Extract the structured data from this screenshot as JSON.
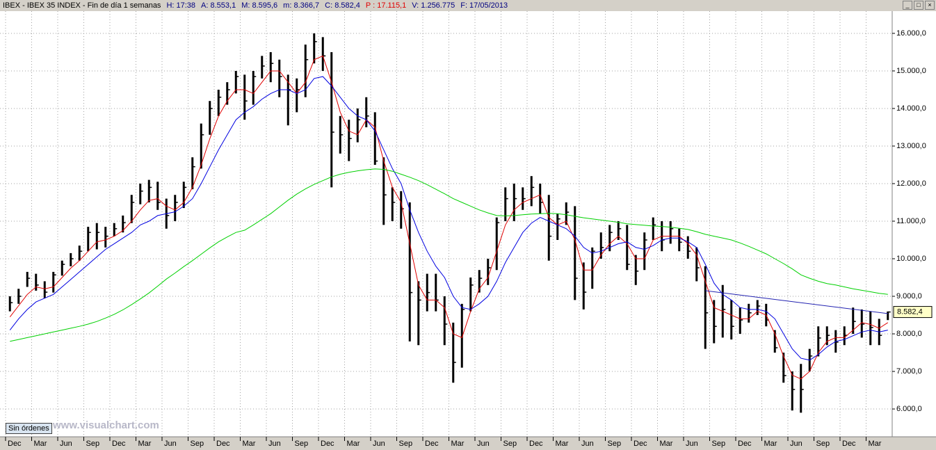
{
  "header": {
    "items": [
      {
        "text": "IBEX - IBEX 35 INDEX - Fin de día 1 semanas",
        "color": "#000000"
      },
      {
        "text": "H: 17:38",
        "color": "#000080"
      },
      {
        "text": "A: 8.553,1",
        "color": "#000080"
      },
      {
        "text": "M: 8.595,6",
        "color": "#000080"
      },
      {
        "text": "m: 8.366,7",
        "color": "#000080"
      },
      {
        "text": "C: 8.582,4",
        "color": "#000080"
      },
      {
        "text": "P : 17.115,1",
        "color": "#e00000"
      },
      {
        "text": "V: 1.256.775",
        "color": "#000080"
      },
      {
        "text": "F: 17/05/2013",
        "color": "#000080"
      }
    ]
  },
  "chart_data": {
    "type": "ohlc",
    "categories": [
      "Dec",
      null,
      null,
      "Mar",
      null,
      null,
      "Jun",
      null,
      null,
      "Sep",
      null,
      null,
      "Dec",
      null,
      null,
      "Mar",
      null,
      null,
      "Jun",
      null,
      null,
      "Sep",
      null,
      null,
      "Dec",
      null,
      null,
      "Mar",
      null,
      null,
      "Jun",
      null,
      null,
      "Sep",
      null,
      null,
      "Dec",
      null,
      null,
      "Mar",
      null,
      null,
      "Jun",
      null,
      null,
      "Sep",
      null,
      null,
      "Dec",
      null,
      null,
      "Mar",
      null,
      null,
      "Jun",
      null,
      null,
      "Sep",
      null,
      null,
      "Dec",
      null,
      null,
      "Mar",
      null,
      null,
      "Jun",
      null,
      null,
      "Sep",
      null,
      null,
      "Dec",
      null,
      null,
      "Mar",
      null,
      null,
      "Jun",
      null,
      null,
      "Sep",
      null,
      null,
      "Dec",
      null,
      null,
      "Mar",
      null,
      null,
      "Jun",
      null,
      null,
      "Sep",
      null,
      null,
      "Dec",
      null,
      null,
      "Mar",
      null,
      null
    ],
    "high": [
      9000,
      9200,
      9650,
      9600,
      9400,
      9650,
      9950,
      10150,
      10350,
      10850,
      10950,
      10850,
      10950,
      11150,
      11700,
      12000,
      12100,
      12050,
      11600,
      11700,
      12050,
      12700,
      13600,
      14200,
      14500,
      14700,
      15000,
      14900,
      15000,
      15400,
      15500,
      15300,
      14900,
      14800,
      15700,
      16000,
      15900,
      15500,
      13800,
      13700,
      14000,
      14300,
      13900,
      12700,
      11900,
      11800,
      11500,
      9400,
      9600,
      9600,
      9000,
      8300,
      8800,
      9500,
      9700,
      10000,
      11100,
      11900,
      12000,
      11900,
      12200,
      12000,
      11700,
      11200,
      11500,
      11400,
      9900,
      10300,
      10700,
      10900,
      11000,
      10900,
      10100,
      10700,
      11100,
      11000,
      11000,
      10800,
      10600,
      10300,
      9800,
      8900,
      9300,
      8900,
      8700,
      8800,
      8900,
      8800,
      8100,
      7500,
      7000,
      7200,
      7600,
      8200,
      8200,
      8100,
      8200,
      8700,
      8650,
      8600,
      8400,
      8595.6
    ],
    "low": [
      8600,
      8800,
      9250,
      9150,
      8950,
      9100,
      9550,
      9800,
      9950,
      10200,
      10250,
      10300,
      10600,
      10700,
      10950,
      11450,
      11500,
      11300,
      10800,
      11000,
      11350,
      11850,
      12400,
      13300,
      13800,
      14100,
      14400,
      13700,
      14100,
      14800,
      14700,
      14300,
      13550,
      13900,
      14300,
      15200,
      15000,
      11900,
      12800,
      12600,
      13100,
      13500,
      12500,
      10900,
      11000,
      10800,
      7800,
      7700,
      8600,
      8600,
      7700,
      6700,
      7100,
      8600,
      9100,
      9300,
      9700,
      11000,
      11000,
      11300,
      11400,
      11200,
      9950,
      10500,
      10900,
      8900,
      8650,
      9200,
      10000,
      10200,
      10500,
      9700,
      9300,
      9700,
      10500,
      10200,
      10400,
      10200,
      10000,
      9400,
      7600,
      7750,
      7900,
      7850,
      8000,
      8300,
      8500,
      8200,
      7500,
      6700,
      5960,
      5900,
      7000,
      7400,
      7700,
      7500,
      7700,
      8000,
      7900,
      7700,
      7700,
      8366.7
    ],
    "close": [
      8830,
      9000,
      9480,
      9300,
      9110,
      9570,
      9850,
      10000,
      10200,
      10700,
      10700,
      10600,
      10800,
      10960,
      11500,
      11800,
      11900,
      11500,
      11150,
      11500,
      11900,
      12450,
      13300,
      14000,
      14300,
      14500,
      14850,
      14200,
      14850,
      15130,
      15200,
      14850,
      14500,
      14500,
      15300,
      15780,
      15400,
      13370,
      13300,
      13200,
      13700,
      13800,
      12600,
      11700,
      11500,
      11330,
      9100,
      8900,
      9100,
      8900,
      8260,
      7240,
      8650,
      9300,
      9480,
      9760,
      10960,
      11600,
      11600,
      11600,
      11900,
      11500,
      10600,
      11060,
      11240,
      9480,
      9110,
      10200,
      10300,
      10700,
      10800,
      9850,
      9670,
      10500,
      10900,
      10500,
      10800,
      10440,
      10200,
      9760,
      8560,
      8200,
      8650,
      8200,
      8370,
      8560,
      8740,
      8370,
      7630,
      6890,
      6520,
      6520,
      7410,
      7890,
      7960,
      7780,
      7960,
      8330,
      8260,
      8170,
      7960,
      8582.4
    ],
    "bar_color": "#000000",
    "series": [
      {
        "color": "#e00000",
        "values": [
          8450,
          8750,
          9050,
          9250,
          9200,
          9250,
          9500,
          9750,
          9950,
          10200,
          10450,
          10500,
          10600,
          10750,
          11000,
          11300,
          11550,
          11600,
          11400,
          11300,
          11500,
          11900,
          12500,
          13200,
          13800,
          14200,
          14500,
          14500,
          14400,
          14700,
          15000,
          15000,
          14700,
          14400,
          14700,
          15300,
          15400,
          14700,
          13900,
          13400,
          13300,
          13700,
          13500,
          12600,
          11900,
          11500,
          10400,
          9300,
          8900,
          8900,
          8700,
          8000,
          7900,
          8600,
          9200,
          9500,
          10200,
          10900,
          11300,
          11500,
          11600,
          11700,
          11100,
          10900,
          11000,
          10500,
          9700,
          9700,
          10100,
          10400,
          10600,
          10400,
          10000,
          10000,
          10500,
          10600,
          10600,
          10600,
          10400,
          10100,
          9400,
          8700,
          8600,
          8500,
          8400,
          8400,
          8600,
          8500,
          8000,
          7400,
          6900,
          6800,
          7000,
          7500,
          7800,
          7900,
          7900,
          8100,
          8300,
          8250,
          8150,
          8300
        ]
      },
      {
        "color": "#0000e0",
        "values": [
          8100,
          8400,
          8650,
          8850,
          8950,
          9050,
          9250,
          9450,
          9650,
          9850,
          10050,
          10250,
          10400,
          10550,
          10700,
          10900,
          11000,
          11150,
          11200,
          11250,
          11400,
          11600,
          12000,
          12450,
          12900,
          13300,
          13700,
          13900,
          14050,
          14250,
          14400,
          14500,
          14500,
          14400,
          14500,
          14800,
          14850,
          14600,
          14300,
          14000,
          13800,
          13700,
          13400,
          12900,
          12400,
          12000,
          11300,
          10700,
          10200,
          9800,
          9500,
          9000,
          8700,
          8650,
          8800,
          9000,
          9400,
          9900,
          10300,
          10700,
          10950,
          11100,
          11000,
          10900,
          10800,
          10600,
          10300,
          10150,
          10200,
          10300,
          10400,
          10450,
          10300,
          10250,
          10350,
          10500,
          10550,
          10550,
          10450,
          10300,
          9850,
          9350,
          9050,
          8900,
          8700,
          8650,
          8650,
          8600,
          8400,
          8000,
          7600,
          7350,
          7300,
          7450,
          7650,
          7800,
          7850,
          7950,
          8050,
          8100,
          8050,
          8100
        ]
      },
      {
        "color": "#00d000",
        "values": [
          7800,
          7850,
          7900,
          7950,
          8000,
          8050,
          8100,
          8150,
          8200,
          8260,
          8330,
          8420,
          8520,
          8640,
          8780,
          8930,
          9090,
          9270,
          9460,
          9620,
          9790,
          9950,
          10120,
          10290,
          10450,
          10580,
          10700,
          10760,
          10900,
          11050,
          11200,
          11380,
          11560,
          11720,
          11860,
          11980,
          12080,
          12180,
          12250,
          12300,
          12340,
          12370,
          12390,
          12380,
          12330,
          12250,
          12170,
          12080,
          11970,
          11850,
          11730,
          11600,
          11500,
          11400,
          11300,
          11220,
          11150,
          11140,
          11150,
          11170,
          11190,
          11200,
          11210,
          11200,
          11170,
          11130,
          11090,
          11060,
          11030,
          11000,
          10970,
          10930,
          10910,
          10890,
          10870,
          10860,
          10840,
          10810,
          10780,
          10720,
          10650,
          10600,
          10550,
          10500,
          10420,
          10330,
          10230,
          10130,
          10000,
          9870,
          9730,
          9570,
          9480,
          9400,
          9340,
          9300,
          9250,
          9200,
          9160,
          9120,
          9080,
          9050
        ]
      }
    ],
    "trendline": {
      "color": "#2020b0",
      "points": [
        [
          80,
          9150
        ],
        [
          101,
          8540
        ]
      ]
    },
    "last_price": {
      "value": 8582.4,
      "label": "8.582,4"
    },
    "ylim": [
      5260,
      16740
    ],
    "yticks": [
      {
        "value": 6000,
        "label": "6.000,0"
      },
      {
        "value": 7000,
        "label": "7.000,0"
      },
      {
        "value": 8000,
        "label": "8.000,0"
      },
      {
        "value": 9000,
        "label": "9.000,0"
      },
      {
        "value": 10000,
        "label": "10.000,0"
      },
      {
        "value": 11000,
        "label": "11.000,0"
      },
      {
        "value": 12000,
        "label": "12.000,0"
      },
      {
        "value": 13000,
        "label": "13.000,0"
      },
      {
        "value": 14000,
        "label": "14.000,0"
      },
      {
        "value": 15000,
        "label": "15.000,0"
      },
      {
        "value": 16000,
        "label": "16.000,0"
      }
    ],
    "grid": true
  },
  "footer": {
    "button": "Sin órdenes",
    "watermark": "www.visualchart.com"
  }
}
